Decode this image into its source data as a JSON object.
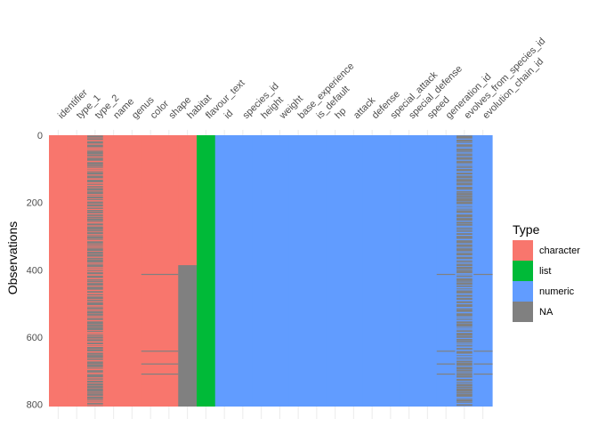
{
  "chart_data": {
    "type": "heatmap",
    "ylabel": "Observations",
    "y_ticks": [
      0,
      200,
      400,
      600,
      800
    ],
    "y_range": [
      0,
      806
    ],
    "grid": "vertical",
    "legend_position": "right",
    "legend_title": "Type",
    "legend": [
      {
        "label": "character",
        "color": "#F8766D"
      },
      {
        "label": "list",
        "color": "#00BA38"
      },
      {
        "label": "numeric",
        "color": "#619CFF"
      },
      {
        "label": "NA",
        "color": "#808080"
      }
    ],
    "columns": [
      {
        "name": "identifier",
        "type": "character",
        "na": []
      },
      {
        "name": "type_1",
        "type": "character",
        "na": []
      },
      {
        "name": "type_2",
        "type": "character",
        "na": "dense"
      },
      {
        "name": "name",
        "type": "character",
        "na": []
      },
      {
        "name": "genus",
        "type": "character",
        "na": []
      },
      {
        "name": "color",
        "type": "character",
        "na": [
          [
            412,
            413
          ],
          [
            640,
            641
          ],
          [
            678,
            680
          ],
          [
            708,
            709
          ]
        ]
      },
      {
        "name": "shape",
        "type": "character",
        "na": [
          [
            412,
            413
          ],
          [
            640,
            641
          ],
          [
            678,
            680
          ],
          [
            708,
            709
          ]
        ]
      },
      {
        "name": "habitat",
        "type": "character",
        "na": [
          [
            386,
            806
          ]
        ]
      },
      {
        "name": "flavour_text",
        "type": "list",
        "na": []
      },
      {
        "name": "id",
        "type": "numeric",
        "na": []
      },
      {
        "name": "species_id",
        "type": "numeric",
        "na": []
      },
      {
        "name": "height",
        "type": "numeric",
        "na": []
      },
      {
        "name": "weight",
        "type": "numeric",
        "na": []
      },
      {
        "name": "base_experience",
        "type": "numeric",
        "na": []
      },
      {
        "name": "is_default",
        "type": "numeric",
        "na": []
      },
      {
        "name": "hp",
        "type": "numeric",
        "na": []
      },
      {
        "name": "attack",
        "type": "numeric",
        "na": []
      },
      {
        "name": "defense",
        "type": "numeric",
        "na": []
      },
      {
        "name": "special_attack",
        "type": "numeric",
        "na": []
      },
      {
        "name": "special_defense",
        "type": "numeric",
        "na": []
      },
      {
        "name": "speed",
        "type": "numeric",
        "na": []
      },
      {
        "name": "generation_id",
        "type": "numeric",
        "na": [
          [
            412,
            413
          ],
          [
            640,
            641
          ],
          [
            678,
            680
          ],
          [
            708,
            709
          ]
        ]
      },
      {
        "name": "evolves_from_species_id",
        "type": "numeric",
        "na": "dense"
      },
      {
        "name": "evolution_chain_id",
        "type": "numeric",
        "na": [
          [
            412,
            413
          ],
          [
            640,
            641
          ],
          [
            678,
            680
          ],
          [
            708,
            709
          ]
        ]
      }
    ]
  }
}
